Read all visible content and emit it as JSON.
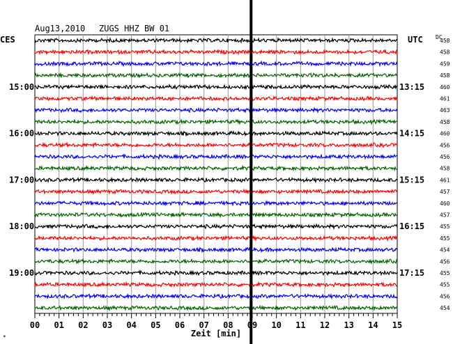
{
  "header": {
    "date": "Aug13,2010",
    "station": "ZUGS HHZ BW 01"
  },
  "left_label": "CES",
  "right_label": "UTC",
  "dc_label": "DC",
  "corner_mark": "*",
  "chart_data": {
    "type": "line",
    "title": "Aug13,2010  ZUGS HHZ BW 01",
    "xlabel": "Zeit [min]",
    "xlim": [
      0,
      15
    ],
    "x_ticks": [
      "00",
      "01",
      "02",
      "03",
      "04",
      "05",
      "06",
      "07",
      "08",
      "09",
      "10",
      "11",
      "12",
      "13",
      "14",
      "15"
    ],
    "grid": true,
    "trace_colors": [
      "#000000",
      "#ff0000",
      "#0000ff",
      "#006400"
    ],
    "trace_count": 24,
    "local_time_labels": [
      {
        "trace": 4,
        "label": "15:00"
      },
      {
        "trace": 8,
        "label": "16:00"
      },
      {
        "trace": 12,
        "label": "17:00"
      },
      {
        "trace": 16,
        "label": "18:00"
      },
      {
        "trace": 20,
        "label": "19:00"
      }
    ],
    "utc_time_labels": [
      {
        "trace": 4,
        "label": "13:15"
      },
      {
        "trace": 8,
        "label": "14:15"
      },
      {
        "trace": 12,
        "label": "15:15"
      },
      {
        "trace": 16,
        "label": "16:15"
      },
      {
        "trace": 20,
        "label": "17:15"
      }
    ],
    "dc_offsets": [
      "458",
      "458",
      "459",
      "458",
      "460",
      "461",
      "463",
      "458",
      "460",
      "456",
      "456",
      "458",
      "461",
      "457",
      "460",
      "457",
      "455",
      "455",
      "454",
      "456",
      "455",
      "455",
      "456",
      "454"
    ],
    "event_marker_minute": 8.95
  }
}
